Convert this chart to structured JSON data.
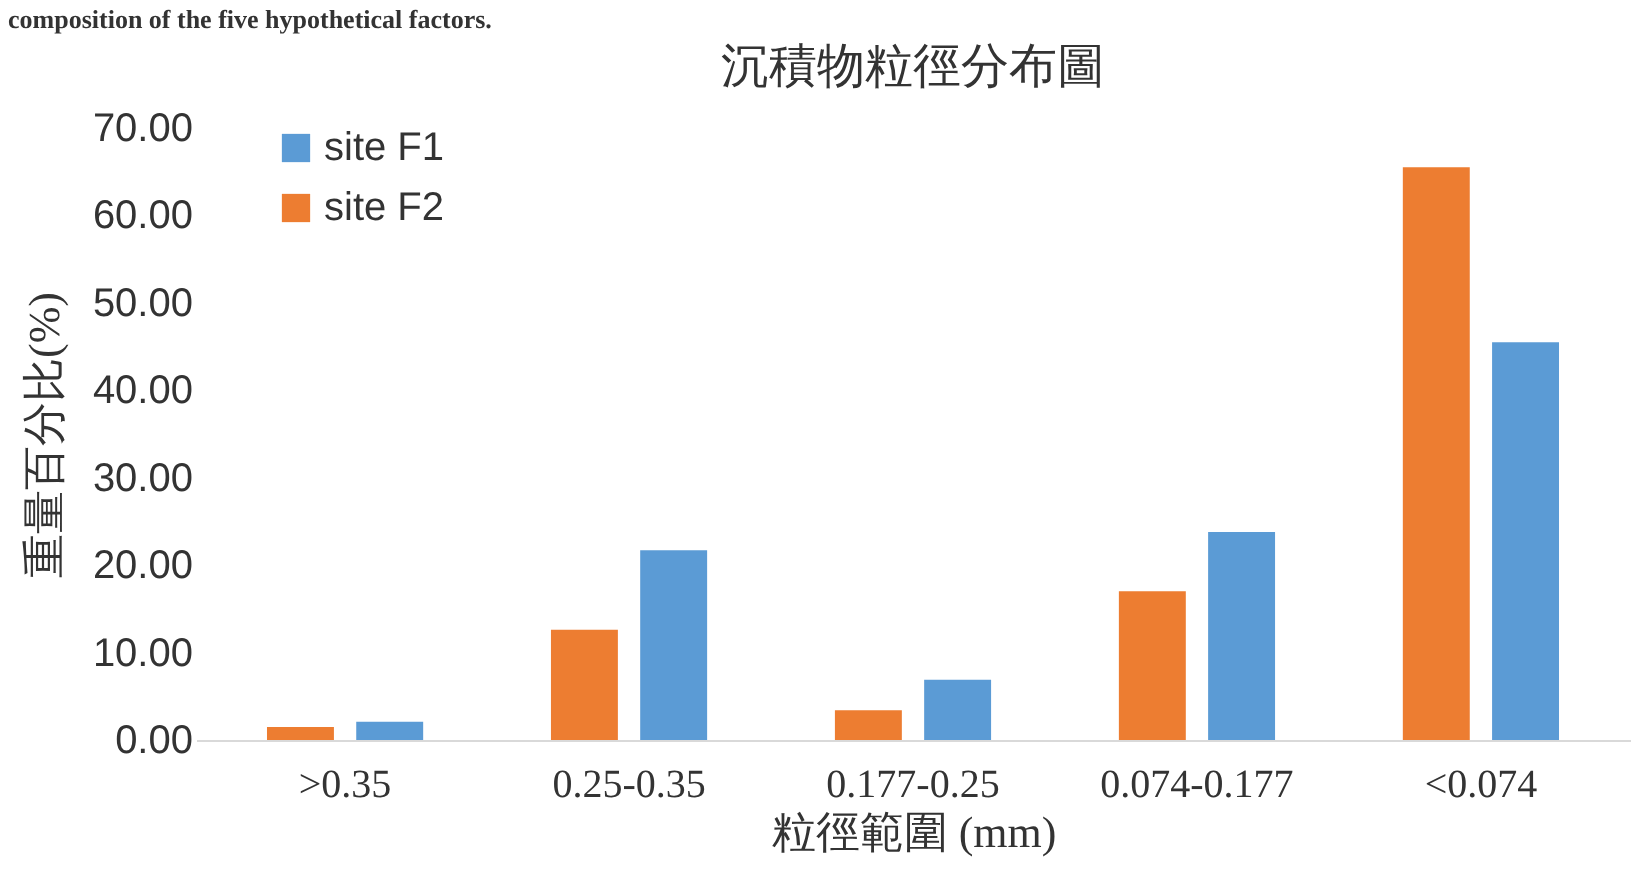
{
  "chart_data": {
    "type": "bar",
    "title": "沉積物粒徑分布圖",
    "xlabel": "粒徑範圍 (mm)",
    "ylabel": "重量百分比(%)",
    "annotations": [
      "composition of the five hypothetical factors."
    ],
    "categories": [
      ">0.35",
      "0.25-0.35",
      "0.177-0.25",
      "0.074-0.177",
      "<0.074"
    ],
    "series": [
      {
        "name": "site F1",
        "color": "#5b9bd5",
        "values": [
          2.1,
          21.7,
          6.9,
          23.8,
          45.5
        ]
      },
      {
        "name": "site F2",
        "color": "#ed7d31",
        "values": [
          1.5,
          12.6,
          3.4,
          17.0,
          65.5
        ]
      }
    ],
    "ylim": [
      0,
      70
    ],
    "yticks": [
      {
        "value": 0,
        "label": "0.00"
      },
      {
        "value": 10,
        "label": "10.00"
      },
      {
        "value": 20,
        "label": "20.00"
      },
      {
        "value": 30,
        "label": "30.00"
      },
      {
        "value": 40,
        "label": "40.00"
      },
      {
        "value": 50,
        "label": "50.00"
      },
      {
        "value": 60,
        "label": "60.00"
      },
      {
        "value": 70,
        "label": "70.00"
      }
    ],
    "grid": false,
    "legend": "top left"
  }
}
